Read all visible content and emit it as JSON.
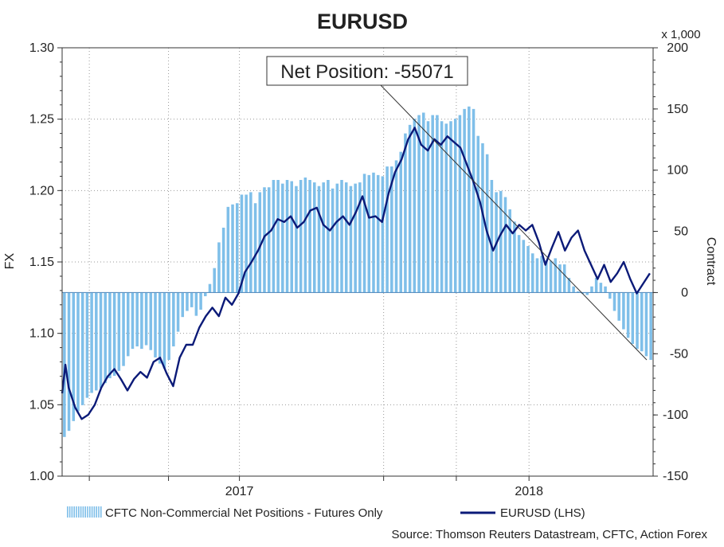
{
  "chart_data": {
    "type": "bar+line",
    "title": "EURUSD",
    "left_axis": {
      "label": "FX",
      "range": [
        1.0,
        1.3
      ],
      "ticks": [
        "1.00",
        "1.05",
        "1.10",
        "1.15",
        "1.20",
        "1.25",
        "1.30"
      ]
    },
    "right_axis": {
      "label": "Contract",
      "unit_note": "x 1,000",
      "range": [
        -150,
        200
      ],
      "ticks": [
        "-150",
        "-100",
        "-50",
        "0",
        "50",
        "100",
        "150",
        "200"
      ]
    },
    "x_axis": {
      "ticks": [
        "2017",
        "2018"
      ]
    },
    "grid": true,
    "annotation": {
      "text": "Net Position: -55071"
    },
    "legend": {
      "position": "bottom",
      "bars_label": "CFTC Non-Commercial Net Positions - Futures Only",
      "line_label": "EURUSD (LHS)"
    },
    "source": "Source: Thomson Reuters Datastream, CFTC, Action Forex",
    "colors": {
      "bars": "#7fbfe9",
      "line": "#0b1a78",
      "grid": "#9a9a9a",
      "trend": "#333333"
    },
    "series": [
      {
        "name": "CFTC Non-Commercial Net Positions - Futures Only",
        "axis": "right",
        "values": [
          -118,
          -113,
          -105,
          -97,
          -92,
          -86,
          -82,
          -80,
          -78,
          -74,
          -70,
          -68,
          -64,
          -60,
          -52,
          -46,
          -44,
          -46,
          -43,
          -47,
          -53,
          -58,
          -62,
          -55,
          -44,
          -32,
          -20,
          -15,
          -12,
          -19,
          -14,
          -3,
          7,
          20,
          41,
          53,
          70,
          72,
          73,
          80,
          80,
          82,
          73,
          82,
          86,
          86,
          92,
          92,
          89,
          92,
          91,
          87,
          92,
          94,
          92,
          90,
          87,
          90,
          92,
          85,
          89,
          92,
          90,
          87,
          89,
          90,
          97,
          96,
          98,
          96,
          95,
          103,
          103,
          108,
          115,
          130,
          137,
          142,
          145,
          147,
          140,
          145,
          145,
          140,
          138,
          140,
          142,
          145,
          150,
          152,
          150,
          128,
          122,
          113,
          92,
          82,
          83,
          78,
          68,
          58,
          47,
          43,
          38,
          32,
          28,
          30,
          26,
          26,
          28,
          23,
          23,
          12,
          5,
          1,
          -1,
          -2,
          5,
          12,
          8,
          5,
          -5,
          -15,
          -23,
          -30,
          -37,
          -42,
          -46,
          -48,
          -52,
          -55
        ]
      },
      {
        "name": "EURUSD (LHS)",
        "axis": "left",
        "points": [
          [
            0,
            1.058
          ],
          [
            1,
            1.078
          ],
          [
            2,
            1.062
          ],
          [
            4,
            1.048
          ],
          [
            6,
            1.04
          ],
          [
            8,
            1.043
          ],
          [
            10,
            1.05
          ],
          [
            12,
            1.062
          ],
          [
            14,
            1.07
          ],
          [
            16,
            1.075
          ],
          [
            18,
            1.068
          ],
          [
            20,
            1.06
          ],
          [
            22,
            1.068
          ],
          [
            24,
            1.073
          ],
          [
            26,
            1.069
          ],
          [
            28,
            1.08
          ],
          [
            30,
            1.083
          ],
          [
            32,
            1.072
          ],
          [
            34,
            1.063
          ],
          [
            36,
            1.083
          ],
          [
            38,
            1.092
          ],
          [
            40,
            1.092
          ],
          [
            42,
            1.104
          ],
          [
            44,
            1.112
          ],
          [
            46,
            1.118
          ],
          [
            48,
            1.112
          ],
          [
            50,
            1.125
          ],
          [
            52,
            1.12
          ],
          [
            54,
            1.128
          ],
          [
            56,
            1.143
          ],
          [
            58,
            1.15
          ],
          [
            60,
            1.158
          ],
          [
            62,
            1.168
          ],
          [
            64,
            1.172
          ],
          [
            66,
            1.18
          ],
          [
            68,
            1.178
          ],
          [
            70,
            1.182
          ],
          [
            72,
            1.174
          ],
          [
            74,
            1.178
          ],
          [
            76,
            1.186
          ],
          [
            78,
            1.188
          ],
          [
            80,
            1.176
          ],
          [
            82,
            1.172
          ],
          [
            84,
            1.178
          ],
          [
            86,
            1.182
          ],
          [
            88,
            1.176
          ],
          [
            90,
            1.185
          ],
          [
            92,
            1.196
          ],
          [
            94,
            1.181
          ],
          [
            96,
            1.182
          ],
          [
            98,
            1.178
          ],
          [
            100,
            1.198
          ],
          [
            102,
            1.213
          ],
          [
            104,
            1.222
          ],
          [
            106,
            1.236
          ],
          [
            108,
            1.244
          ],
          [
            110,
            1.232
          ],
          [
            112,
            1.228
          ],
          [
            114,
            1.236
          ],
          [
            116,
            1.232
          ],
          [
            118,
            1.238
          ],
          [
            120,
            1.234
          ],
          [
            122,
            1.23
          ],
          [
            124,
            1.218
          ],
          [
            126,
            1.206
          ],
          [
            128,
            1.192
          ],
          [
            130,
            1.172
          ],
          [
            132,
            1.158
          ],
          [
            134,
            1.168
          ],
          [
            136,
            1.176
          ],
          [
            138,
            1.17
          ],
          [
            140,
            1.176
          ],
          [
            142,
            1.172
          ],
          [
            144,
            1.176
          ],
          [
            146,
            1.164
          ],
          [
            148,
            1.148
          ],
          [
            150,
            1.16
          ],
          [
            152,
            1.171
          ],
          [
            154,
            1.158
          ],
          [
            156,
            1.167
          ],
          [
            158,
            1.172
          ],
          [
            160,
            1.158
          ],
          [
            162,
            1.148
          ],
          [
            164,
            1.138
          ],
          [
            166,
            1.148
          ],
          [
            168,
            1.136
          ],
          [
            170,
            1.142
          ],
          [
            172,
            1.15
          ],
          [
            174,
            1.138
          ],
          [
            176,
            1.128
          ],
          [
            178,
            1.135
          ],
          [
            180,
            1.142
          ]
        ]
      }
    ]
  }
}
